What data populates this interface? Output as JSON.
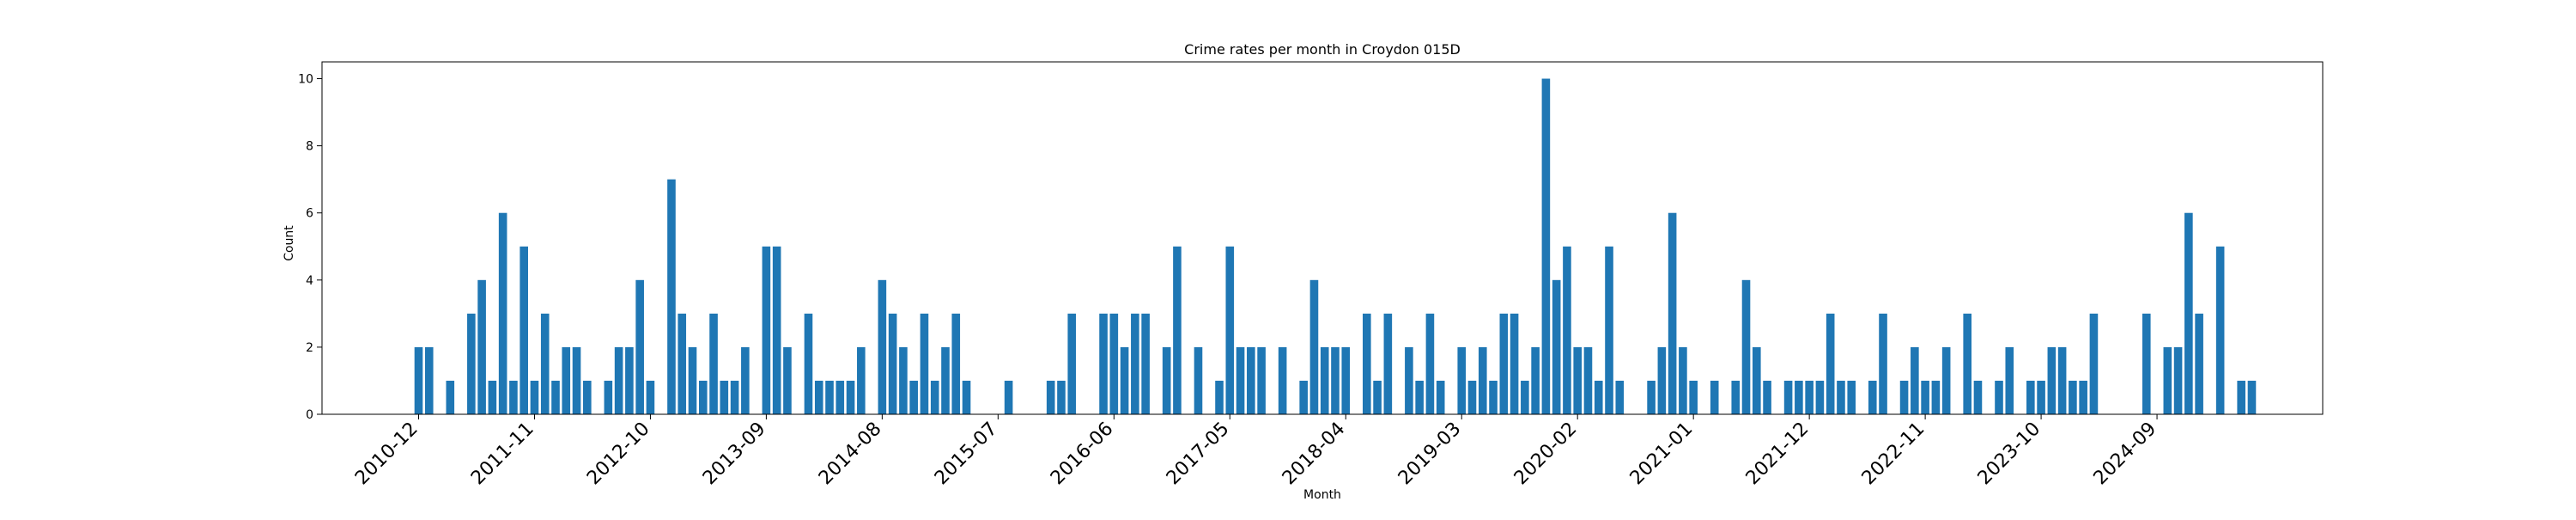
{
  "chart_data": {
    "type": "bar",
    "title": "Crime rates per month in Croydon 015D",
    "xlabel": "Month",
    "ylabel": "Count",
    "ylim": [
      0,
      10.5
    ],
    "y_ticks": [
      0,
      2,
      4,
      6,
      8,
      10
    ],
    "x_start": "2010-12",
    "x_tick_labels": [
      "2010-12",
      "2011-11",
      "2012-10",
      "2013-09",
      "2014-08",
      "2015-07",
      "2016-06",
      "2017-05",
      "2018-04",
      "2019-03",
      "2020-02",
      "2021-01",
      "2021-12",
      "2022-11",
      "2023-10",
      "2024-09"
    ],
    "x_tick_rotation": 45,
    "bar_color": "#1f77b4",
    "grid": false,
    "values": [
      2,
      2,
      0,
      1,
      0,
      3,
      4,
      1,
      6,
      1,
      5,
      1,
      3,
      1,
      2,
      2,
      1,
      0,
      1,
      2,
      2,
      4,
      1,
      0,
      7,
      3,
      2,
      1,
      3,
      1,
      1,
      2,
      0,
      5,
      5,
      2,
      0,
      3,
      1,
      1,
      1,
      1,
      2,
      0,
      4,
      3,
      2,
      1,
      3,
      1,
      2,
      3,
      1,
      0,
      0,
      0,
      1,
      0,
      0,
      0,
      1,
      1,
      3,
      0,
      0,
      3,
      3,
      2,
      3,
      3,
      0,
      2,
      5,
      0,
      2,
      0,
      1,
      5,
      2,
      2,
      2,
      0,
      2,
      0,
      1,
      4,
      2,
      2,
      2,
      0,
      3,
      1,
      3,
      0,
      2,
      1,
      3,
      1,
      0,
      2,
      1,
      2,
      1,
      3,
      3,
      1,
      2,
      10,
      4,
      5,
      2,
      2,
      1,
      5,
      1,
      0,
      0,
      1,
      2,
      6,
      2,
      1,
      0,
      1,
      0,
      1,
      4,
      2,
      1,
      0,
      1,
      1,
      1,
      1,
      3,
      1,
      1,
      0,
      1,
      3,
      0,
      1,
      2,
      1,
      1,
      2,
      0,
      3,
      1,
      0,
      1,
      2,
      0,
      1,
      1,
      2,
      2,
      1,
      1,
      3,
      0,
      0,
      0,
      0,
      3,
      0,
      2,
      2,
      6,
      3,
      0,
      5,
      0,
      1,
      1
    ]
  }
}
